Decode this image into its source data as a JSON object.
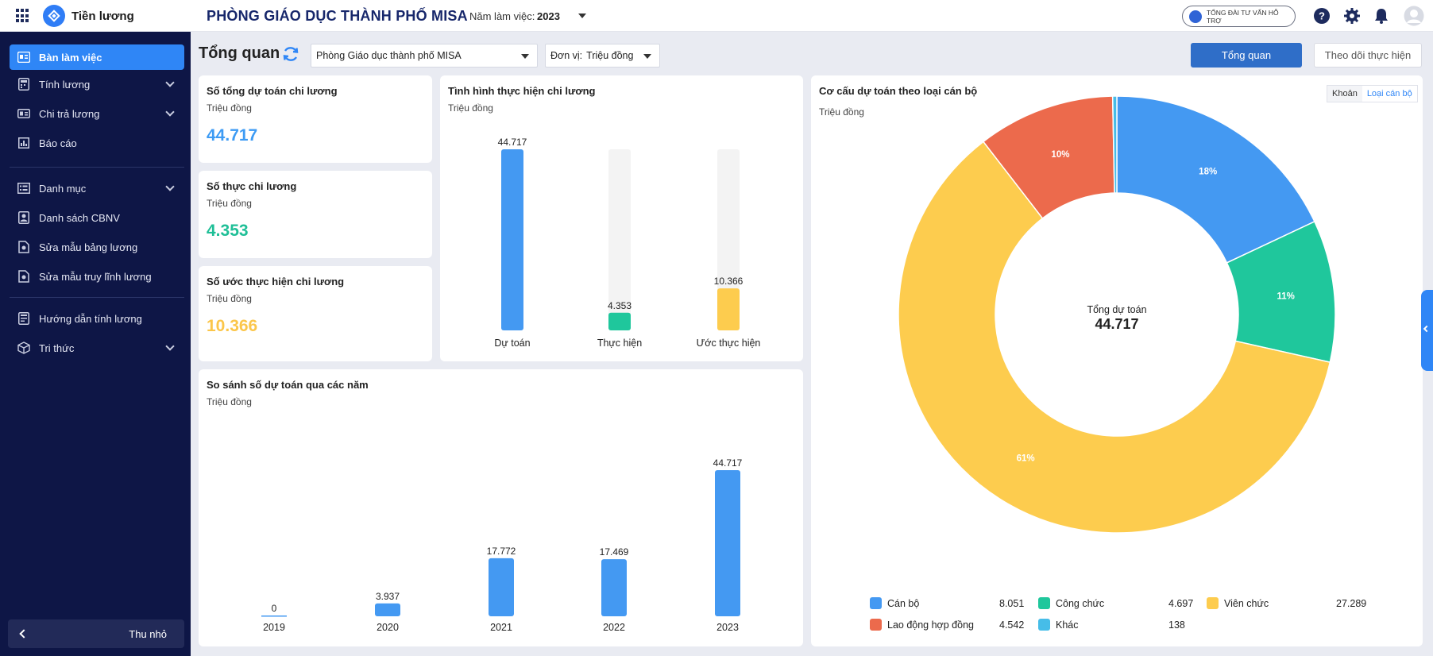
{
  "app": {
    "name": "Tiền lương",
    "org_title": "PHÒNG GIÁO DỤC THÀNH PHỐ MISA",
    "year_label": "Năm làm việc:",
    "year_value": "2023",
    "support_label": "TỔNG ĐÀI TƯ VẤN HỖ TRỢ"
  },
  "sidebar": {
    "items": [
      {
        "label": "Bàn làm việc",
        "icon": "dashboard-icon",
        "active": true,
        "chevron": false
      },
      {
        "label": "Tính lương",
        "icon": "calculator-icon",
        "active": false,
        "chevron": true
      },
      {
        "label": "Chi trả lương",
        "icon": "payment-icon",
        "active": false,
        "chevron": true
      },
      {
        "label": "Báo cáo",
        "icon": "report-icon",
        "active": false,
        "chevron": false
      },
      {
        "label": "Danh mục",
        "icon": "list-icon",
        "active": false,
        "chevron": true
      },
      {
        "label": "Danh sách CBNV",
        "icon": "employee-icon",
        "active": false,
        "chevron": false
      },
      {
        "label": "Sửa mẫu bảng lương",
        "icon": "template-icon",
        "active": false,
        "chevron": false
      },
      {
        "label": "Sửa mẫu truy lĩnh lương",
        "icon": "template-icon",
        "active": false,
        "chevron": false
      },
      {
        "label": "Hướng dẫn tính lương",
        "icon": "guide-icon",
        "active": false,
        "chevron": false
      },
      {
        "label": "Tri thức",
        "icon": "knowledge-icon",
        "active": false,
        "chevron": true
      }
    ],
    "collapse_label": "Thu nhỏ"
  },
  "toolbar": {
    "title": "Tổng quan",
    "unit_select": "Phòng Giáo dục thành phố MISA",
    "unit_label": "Đơn vị:",
    "unit_value": "Triệu đồng",
    "btn_overview": "Tổng quan",
    "btn_track": "Theo dõi thực hiện"
  },
  "kpis": [
    {
      "title": "Số tổng dự toán chi lương",
      "unit": "Triệu đồng",
      "value": "44.717",
      "color": "#3d9bf4"
    },
    {
      "title": "Số thực chi lương",
      "unit": "Triệu đồng",
      "value": "4.353",
      "color": "#1fbf97"
    },
    {
      "title": "Số ước thực hiện chi lương",
      "unit": "Triệu đồng",
      "value": "10.366",
      "color": "#fbc64a"
    }
  ],
  "progress_chart": {
    "title": "Tình hình thực hiện chi lương",
    "unit": "Triệu đồng",
    "chart_data": {
      "type": "bar",
      "categories": [
        "Dự toán",
        "Thực hiện",
        "Ước thực hiện"
      ],
      "values": [
        44717,
        4353,
        10366
      ],
      "labels": [
        "44.717",
        "4.353",
        "10.366"
      ],
      "colors": [
        "#4499f2",
        "#1fc79c",
        "#fdcc4e"
      ],
      "ylim": [
        0,
        44717
      ]
    }
  },
  "yearly_chart": {
    "title": "So sánh số dự toán qua các năm",
    "unit": "Triệu đồng",
    "chart_data": {
      "type": "bar",
      "categories": [
        "2019",
        "2020",
        "2021",
        "2022",
        "2023"
      ],
      "values": [
        0,
        3937,
        17772,
        17469,
        44717
      ],
      "labels": [
        "0",
        "3.937",
        "17.772",
        "17.469",
        "44.717"
      ],
      "color": "#4499f2",
      "ylim": [
        0,
        44717
      ]
    }
  },
  "donut_chart": {
    "title": "Cơ cấu dự toán theo loại cán bộ",
    "unit": "Triệu đồng",
    "toggle": [
      "Khoản",
      "Loại cán bộ"
    ],
    "center_label": "Tổng dự toán",
    "center_value": "44.717",
    "chart_data": {
      "type": "pie",
      "categories": [
        "Cán bộ",
        "Công chức",
        "Viên chức",
        "Lao động hợp đồng",
        "Khác"
      ],
      "values": [
        8051,
        4697,
        27289,
        4542,
        138
      ],
      "value_labels": [
        "8.051",
        "4.697",
        "27.289",
        "4.542",
        "138"
      ],
      "pct_labels": [
        "18%",
        "11%",
        "61%",
        "10%",
        ""
      ],
      "colors": [
        "#4499f2",
        "#1fc79c",
        "#fdcc4e",
        "#ec6a4c",
        "#46bde8"
      ]
    }
  }
}
